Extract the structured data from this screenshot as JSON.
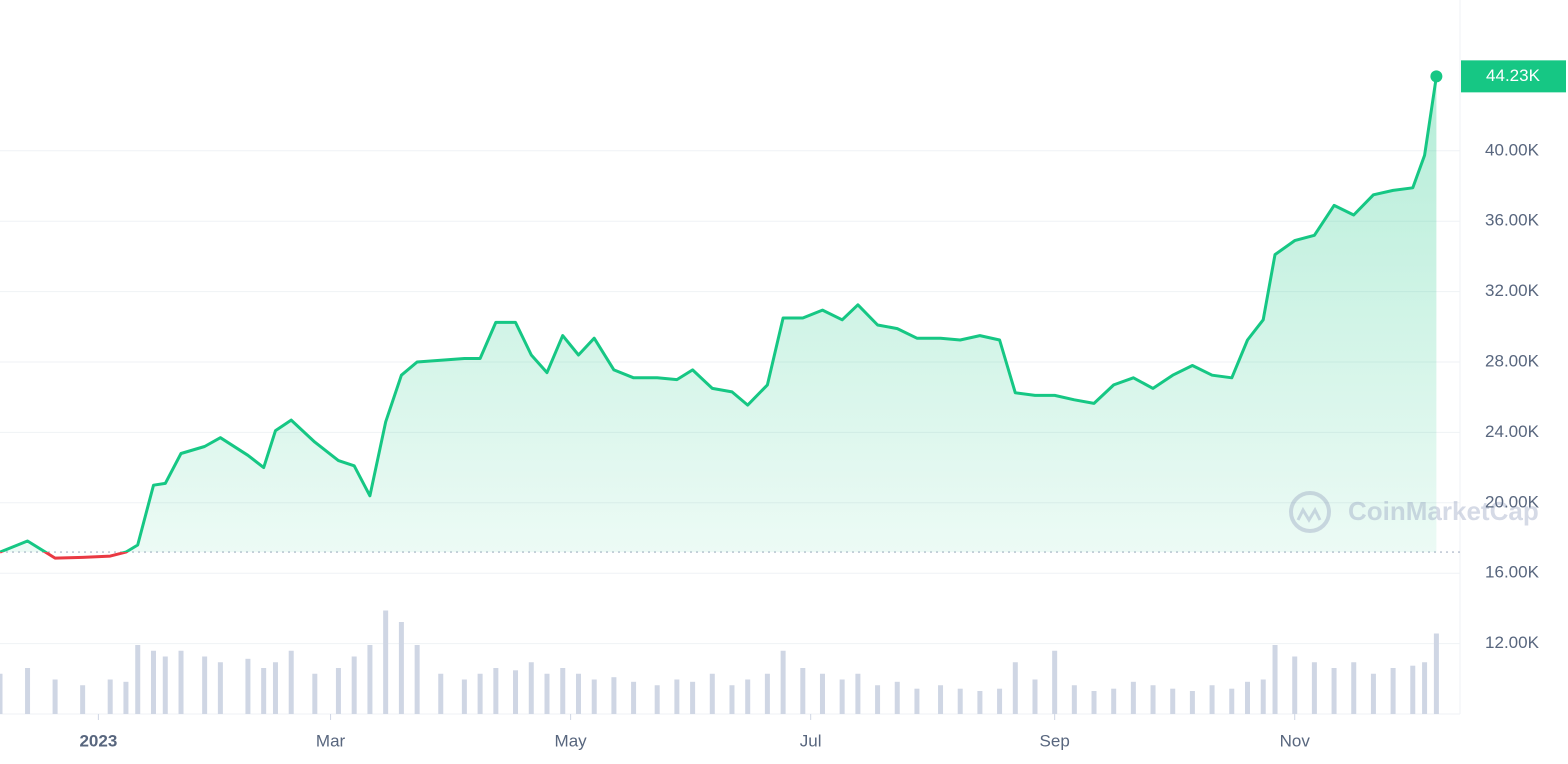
{
  "chart_data": {
    "type": "line",
    "x": [
      0,
      7,
      14,
      21,
      28,
      32,
      35,
      39,
      42,
      46,
      52,
      56,
      63,
      67,
      70,
      74,
      80,
      86,
      90,
      94,
      98,
      102,
      106,
      112,
      118,
      122,
      126,
      131,
      135,
      139,
      143,
      147,
      151,
      156,
      161,
      167,
      172,
      176,
      181,
      186,
      190,
      195,
      199,
      204,
      209,
      214,
      218,
      223,
      228,
      233,
      239,
      244,
      249,
      254,
      258,
      263,
      268,
      273,
      278,
      283,
      288,
      293,
      298,
      303,
      308,
      313,
      317,
      321,
      324,
      329,
      334,
      339,
      344,
      349,
      354,
      359,
      362,
      365
    ],
    "values": [
      17200,
      17830,
      16860,
      16900,
      16970,
      17200,
      17600,
      21000,
      21100,
      22800,
      23200,
      23700,
      22700,
      22000,
      24100,
      24700,
      23450,
      22400,
      22100,
      20400,
      24600,
      27250,
      28000,
      28100,
      28200,
      28200,
      30250,
      30250,
      28400,
      27400,
      29500,
      28400,
      29350,
      27550,
      27100,
      27100,
      27000,
      27550,
      26500,
      26300,
      25550,
      26700,
      30500,
      30500,
      30950,
      30400,
      31250,
      30100,
      29900,
      29350,
      29350,
      29250,
      29500,
      29250,
      26250,
      26100,
      26100,
      25850,
      25650,
      26700,
      27100,
      26500,
      27250,
      27800,
      27250,
      27100,
      29250,
      30400,
      34100,
      34900,
      35200,
      36900,
      36350,
      37500,
      37750,
      37900,
      39750,
      44230
    ],
    "volume": [
      35,
      40,
      30,
      25,
      30,
      28,
      60,
      55,
      50,
      55,
      50,
      45,
      48,
      40,
      45,
      55,
      35,
      40,
      50,
      60,
      90,
      80,
      60,
      35,
      30,
      35,
      40,
      38,
      45,
      35,
      40,
      35,
      30,
      32,
      28,
      25,
      30,
      28,
      35,
      25,
      30,
      35,
      55,
      40,
      35,
      30,
      35,
      25,
      28,
      22,
      25,
      22,
      20,
      22,
      45,
      30,
      55,
      25,
      20,
      22,
      28,
      25,
      22,
      20,
      25,
      22,
      28,
      30,
      60,
      50,
      45,
      40,
      45,
      35,
      40,
      42,
      45,
      70
    ],
    "volume_lim": [
      0,
      100
    ],
    "baseline": 17200,
    "color": "#16c784",
    "color_down": "#ea3943",
    "volume_color": "#cfd6e4",
    "current_price": {
      "value": 44230,
      "label": "44.23K"
    },
    "xlim": [
      0,
      371
    ],
    "xticks": [
      {
        "value": 25,
        "label": "2023"
      },
      {
        "value": 84,
        "label": "Mar"
      },
      {
        "value": 145,
        "label": "May"
      },
      {
        "value": 206,
        "label": "Jul"
      },
      {
        "value": 268,
        "label": "Sep"
      },
      {
        "value": 329,
        "label": "Nov"
      }
    ],
    "ylim": [
      8000,
      48000
    ],
    "yticks": [
      {
        "value": 12000,
        "label": "12.00K"
      },
      {
        "value": 16000,
        "label": "16.00K"
      },
      {
        "value": 20000,
        "label": "20.00K"
      },
      {
        "value": 24000,
        "label": "24.00K"
      },
      {
        "value": 28000,
        "label": "28.00K"
      },
      {
        "value": 32000,
        "label": "32.00K"
      },
      {
        "value": 36000,
        "label": "36.00K"
      },
      {
        "value": 40000,
        "label": "40.00K"
      }
    ],
    "grid": true,
    "watermark": "CoinMarketCap"
  }
}
